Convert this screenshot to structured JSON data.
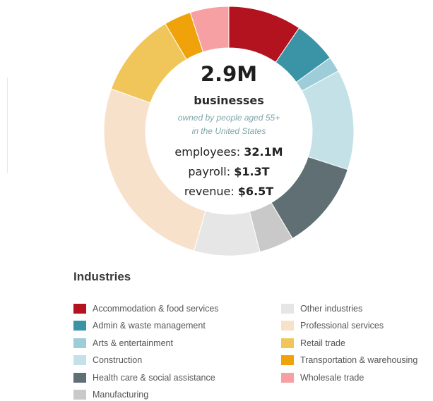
{
  "chart_data": {
    "type": "donut",
    "center": {
      "value": "2.9M",
      "unit": "businesses",
      "subtitle_line1": "owned by people aged 55+",
      "subtitle_line2": "in the United States",
      "stats": [
        {
          "label": "employees:",
          "value": "32.1M"
        },
        {
          "label": "payroll:",
          "value": "$1.3T"
        },
        {
          "label": "revenue:",
          "value": "$6.5T"
        }
      ]
    },
    "slices": [
      {
        "name": "Accommodation & food services",
        "value": 9.5,
        "color": "#b3121f"
      },
      {
        "name": "Admin & waste management",
        "value": 5.5,
        "color": "#3a94a6"
      },
      {
        "name": "Arts & entertainment",
        "value": 2.0,
        "color": "#9ccdd8"
      },
      {
        "name": "Construction",
        "value": 13.0,
        "color": "#c4e1e8"
      },
      {
        "name": "Health care & social assistance",
        "value": 11.5,
        "color": "#5f6f73"
      },
      {
        "name": "Manufacturing",
        "value": 4.5,
        "color": "#c9c9c9"
      },
      {
        "name": "Other industries",
        "value": 8.5,
        "color": "#e6e6e6"
      },
      {
        "name": "Professional services",
        "value": 26.0,
        "color": "#f8e1cb"
      },
      {
        "name": "Retail trade",
        "value": 11.0,
        "color": "#f0c65a"
      },
      {
        "name": "Transportation & warehousing",
        "value": 3.5,
        "color": "#f0a20a"
      },
      {
        "name": "Wholesale trade",
        "value": 5.0,
        "color": "#f6a0a4"
      }
    ],
    "legend_title": "Industries"
  }
}
